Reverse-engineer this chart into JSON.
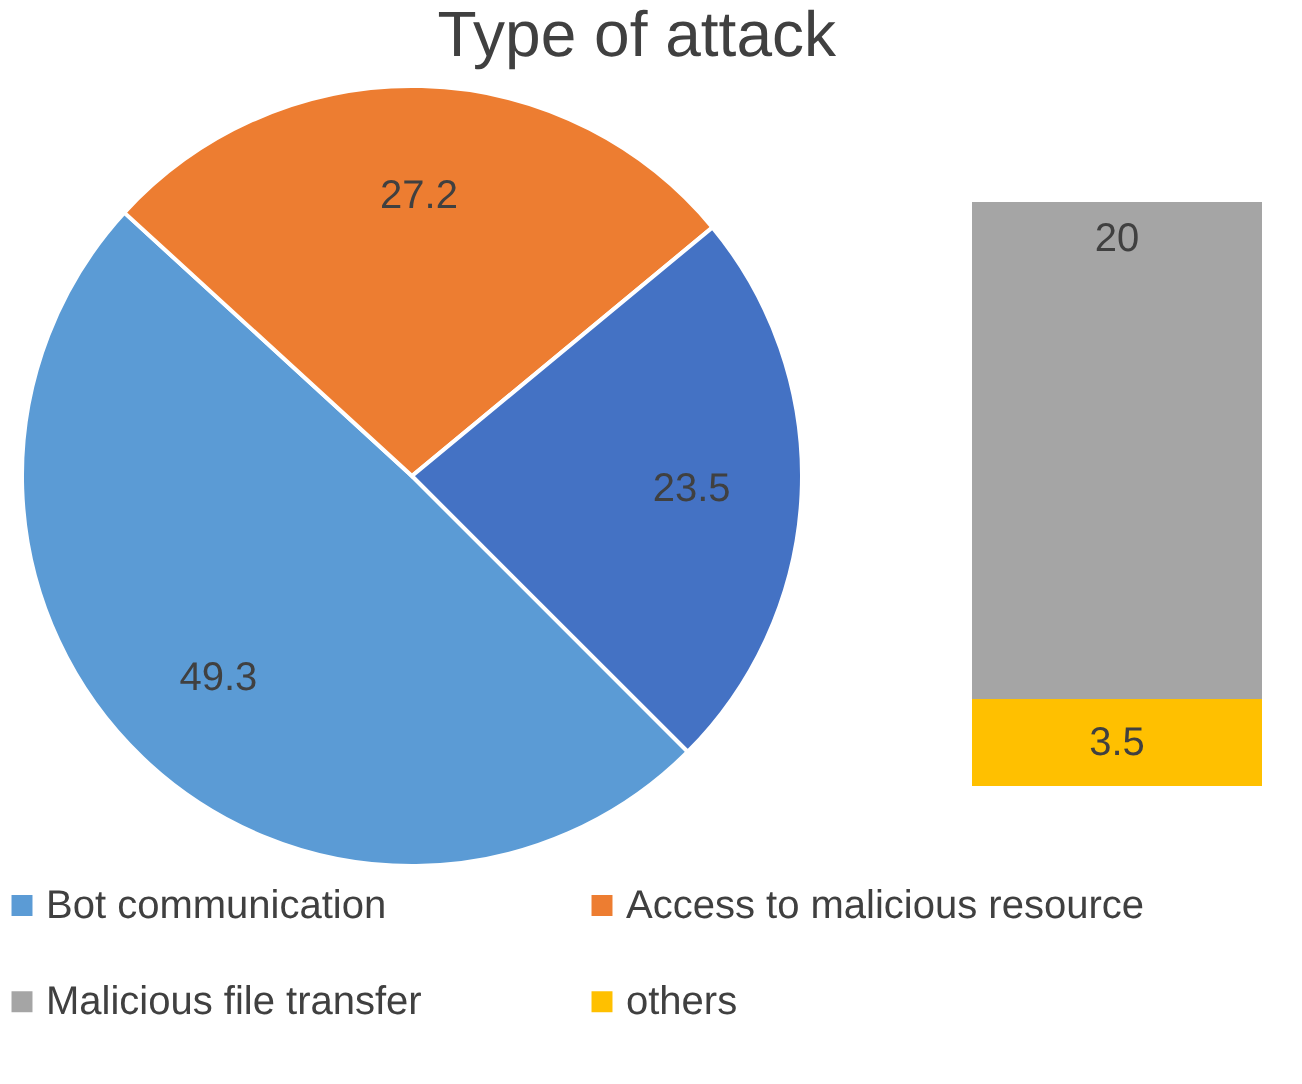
{
  "chart_data": [
    {
      "type": "pie",
      "title": "Type of attack",
      "categories": [
        "Bot communication",
        "Access to malicious resource",
        null
      ],
      "values": [
        49.3,
        27.2,
        23.5
      ],
      "colors": [
        "#5b9bd5",
        "#ed7d31",
        "#4472c4"
      ],
      "data_labels": true,
      "legend": "bottom"
    },
    {
      "type": "bar",
      "stacked": true,
      "categories": [
        null
      ],
      "series": [
        {
          "name": "others",
          "color": "#ffc000",
          "values": [
            3.5
          ]
        },
        {
          "name": "Malicious file transfer",
          "color": "#a5a5a5",
          "values": [
            20
          ]
        }
      ],
      "data_labels": true,
      "legend": "bottom"
    }
  ]
}
